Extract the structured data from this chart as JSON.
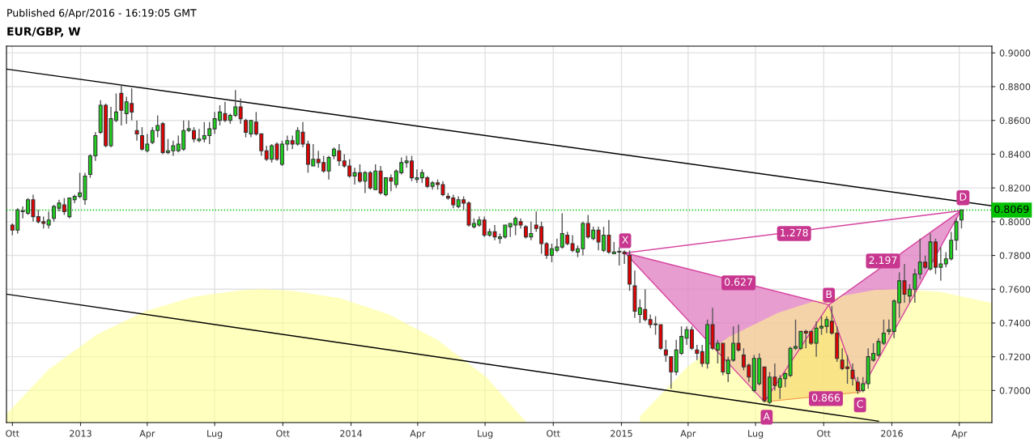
{
  "chart_data": {
    "type": "candlestick",
    "title": "EUR/GBP, W",
    "subtitle": "Published 6/Apr/2016 - 16:19:05 GMT",
    "x": [
      "2012-10-01",
      "2012-10-08",
      "2012-10-15",
      "2012-10-22",
      "2012-10-29",
      "2012-11-05",
      "2012-11-12",
      "2012-11-19",
      "2012-11-26",
      "2012-12-03",
      "2012-12-10",
      "2012-12-17",
      "2012-12-24",
      "2012-12-31",
      "2013-01-07",
      "2013-01-14",
      "2013-01-21",
      "2013-01-28",
      "2013-02-04",
      "2013-02-11",
      "2013-02-18",
      "2013-02-25",
      "2013-03-04",
      "2013-03-11",
      "2013-03-18",
      "2013-03-25",
      "2013-04-01",
      "2013-04-08",
      "2013-04-15",
      "2013-04-22",
      "2013-04-29",
      "2013-05-06",
      "2013-05-13",
      "2013-05-20",
      "2013-05-27",
      "2013-06-03",
      "2013-06-10",
      "2013-06-17",
      "2013-06-24",
      "2013-07-01",
      "2013-07-08",
      "2013-07-15",
      "2013-07-22",
      "2013-07-29",
      "2013-08-05",
      "2013-08-12",
      "2013-08-19",
      "2013-08-26",
      "2013-09-02",
      "2013-09-09",
      "2013-09-16",
      "2013-09-23",
      "2013-09-30",
      "2013-10-07",
      "2013-10-14",
      "2013-10-21",
      "2013-10-28",
      "2013-11-04",
      "2013-11-11",
      "2013-11-18",
      "2013-11-25",
      "2013-12-02",
      "2013-12-09",
      "2013-12-16",
      "2013-12-23",
      "2013-12-30",
      "2014-01-06",
      "2014-01-13",
      "2014-01-20",
      "2014-01-27",
      "2014-02-03",
      "2014-02-10",
      "2014-02-17",
      "2014-02-24",
      "2014-03-03",
      "2014-03-10",
      "2014-03-17",
      "2014-03-24",
      "2014-03-31",
      "2014-04-07",
      "2014-04-14",
      "2014-04-21",
      "2014-04-28",
      "2014-05-05",
      "2014-05-12",
      "2014-05-19",
      "2014-05-26",
      "2014-06-02",
      "2014-06-09",
      "2014-06-16",
      "2014-06-23",
      "2014-06-30",
      "2014-07-07",
      "2014-07-14",
      "2014-07-21",
      "2014-07-28",
      "2014-08-04",
      "2014-08-11",
      "2014-08-18",
      "2014-08-25",
      "2014-09-01",
      "2014-09-08",
      "2014-09-15",
      "2014-09-22",
      "2014-09-29",
      "2014-10-06",
      "2014-10-13",
      "2014-10-20",
      "2014-10-27",
      "2014-11-03",
      "2014-11-10",
      "2014-11-17",
      "2014-11-24",
      "2014-12-01",
      "2014-12-08",
      "2014-12-15",
      "2014-12-22",
      "2014-12-29",
      "2015-01-05",
      "2015-01-12",
      "2015-01-19",
      "2015-01-26",
      "2015-02-02",
      "2015-02-09",
      "2015-02-16",
      "2015-02-23",
      "2015-03-02",
      "2015-03-09",
      "2015-03-16",
      "2015-03-23",
      "2015-03-30",
      "2015-04-06",
      "2015-04-13",
      "2015-04-20",
      "2015-04-27",
      "2015-05-04",
      "2015-05-11",
      "2015-05-18",
      "2015-05-25",
      "2015-06-01",
      "2015-06-08",
      "2015-06-15",
      "2015-06-22",
      "2015-06-29",
      "2015-07-06",
      "2015-07-13",
      "2015-07-20",
      "2015-07-27",
      "2015-08-03",
      "2015-08-10",
      "2015-08-17",
      "2015-08-24",
      "2015-08-31",
      "2015-09-07",
      "2015-09-14",
      "2015-09-21",
      "2015-09-28",
      "2015-10-05",
      "2015-10-12",
      "2015-10-19",
      "2015-10-26",
      "2015-11-02",
      "2015-11-09",
      "2015-11-16",
      "2015-11-23",
      "2015-11-30",
      "2015-12-07",
      "2015-12-14",
      "2015-12-21",
      "2015-12-28",
      "2016-01-04",
      "2016-01-11",
      "2016-01-18",
      "2016-01-25",
      "2016-02-01",
      "2016-02-08",
      "2016-02-15",
      "2016-02-22",
      "2016-02-29",
      "2016-03-07",
      "2016-03-14",
      "2016-03-21",
      "2016-03-28",
      "2016-04-04"
    ],
    "ohlc": [
      [
        0.798,
        0.799,
        0.792,
        0.795
      ],
      [
        0.795,
        0.808,
        0.793,
        0.807
      ],
      [
        0.806,
        0.809,
        0.802,
        0.806
      ],
      [
        0.805,
        0.814,
        0.804,
        0.813
      ],
      [
        0.813,
        0.816,
        0.8,
        0.803
      ],
      [
        0.803,
        0.807,
        0.799,
        0.8
      ],
      [
        0.8,
        0.803,
        0.796,
        0.799
      ],
      [
        0.798,
        0.806,
        0.796,
        0.801
      ],
      [
        0.802,
        0.81,
        0.8,
        0.809
      ],
      [
        0.808,
        0.813,
        0.806,
        0.811
      ],
      [
        0.81,
        0.814,
        0.804,
        0.806
      ],
      [
        0.803,
        0.814,
        0.802,
        0.814
      ],
      [
        0.813,
        0.816,
        0.811,
        0.815
      ],
      [
        0.815,
        0.829,
        0.814,
        0.817
      ],
      [
        0.813,
        0.829,
        0.81,
        0.827
      ],
      [
        0.828,
        0.84,
        0.826,
        0.839
      ],
      [
        0.839,
        0.853,
        0.836,
        0.851
      ],
      [
        0.853,
        0.872,
        0.852,
        0.869
      ],
      [
        0.869,
        0.87,
        0.844,
        0.845
      ],
      [
        0.845,
        0.868,
        0.844,
        0.861
      ],
      [
        0.86,
        0.876,
        0.859,
        0.865
      ],
      [
        0.876,
        0.881,
        0.857,
        0.866
      ],
      [
        0.864,
        0.874,
        0.858,
        0.871
      ],
      [
        0.87,
        0.879,
        0.86,
        0.865
      ],
      [
        0.854,
        0.86,
        0.848,
        0.852
      ],
      [
        0.851,
        0.856,
        0.842,
        0.843
      ],
      [
        0.842,
        0.852,
        0.841,
        0.846
      ],
      [
        0.847,
        0.856,
        0.846,
        0.854
      ],
      [
        0.854,
        0.863,
        0.85,
        0.857
      ],
      [
        0.858,
        0.859,
        0.84,
        0.841
      ],
      [
        0.841,
        0.849,
        0.84,
        0.842
      ],
      [
        0.842,
        0.848,
        0.839,
        0.845
      ],
      [
        0.842,
        0.851,
        0.841,
        0.846
      ],
      [
        0.843,
        0.86,
        0.842,
        0.854
      ],
      [
        0.854,
        0.86,
        0.853,
        0.855
      ],
      [
        0.854,
        0.856,
        0.847,
        0.849
      ],
      [
        0.848,
        0.855,
        0.847,
        0.849
      ],
      [
        0.849,
        0.859,
        0.847,
        0.851
      ],
      [
        0.851,
        0.859,
        0.846,
        0.855
      ],
      [
        0.855,
        0.865,
        0.852,
        0.861
      ],
      [
        0.86,
        0.869,
        0.857,
        0.865
      ],
      [
        0.864,
        0.871,
        0.859,
        0.86
      ],
      [
        0.86,
        0.864,
        0.858,
        0.863
      ],
      [
        0.863,
        0.878,
        0.862,
        0.868
      ],
      [
        0.868,
        0.873,
        0.858,
        0.861
      ],
      [
        0.86,
        0.861,
        0.85,
        0.853
      ],
      [
        0.852,
        0.86,
        0.85,
        0.86
      ],
      [
        0.859,
        0.865,
        0.851,
        0.852
      ],
      [
        0.852,
        0.852,
        0.839,
        0.842
      ],
      [
        0.842,
        0.845,
        0.836,
        0.837
      ],
      [
        0.837,
        0.846,
        0.835,
        0.845
      ],
      [
        0.846,
        0.847,
        0.836,
        0.837
      ],
      [
        0.834,
        0.848,
        0.833,
        0.846
      ],
      [
        0.846,
        0.851,
        0.842,
        0.848
      ],
      [
        0.848,
        0.851,
        0.843,
        0.846
      ],
      [
        0.846,
        0.856,
        0.845,
        0.854
      ],
      [
        0.853,
        0.859,
        0.844,
        0.846
      ],
      [
        0.846,
        0.848,
        0.829,
        0.834
      ],
      [
        0.833,
        0.846,
        0.833,
        0.837
      ],
      [
        0.837,
        0.842,
        0.832,
        0.835
      ],
      [
        0.835,
        0.839,
        0.829,
        0.83
      ],
      [
        0.83,
        0.839,
        0.825,
        0.838
      ],
      [
        0.839,
        0.844,
        0.837,
        0.843
      ],
      [
        0.842,
        0.846,
        0.833,
        0.836
      ],
      [
        0.836,
        0.84,
        0.832,
        0.833
      ],
      [
        0.833,
        0.837,
        0.826,
        0.827
      ],
      [
        0.827,
        0.832,
        0.822,
        0.829
      ],
      [
        0.829,
        0.834,
        0.823,
        0.824
      ],
      [
        0.824,
        0.83,
        0.817,
        0.829
      ],
      [
        0.829,
        0.83,
        0.819,
        0.82
      ],
      [
        0.819,
        0.834,
        0.819,
        0.83
      ],
      [
        0.83,
        0.833,
        0.816,
        0.817
      ],
      [
        0.816,
        0.826,
        0.815,
        0.826
      ],
      [
        0.826,
        0.828,
        0.818,
        0.824
      ],
      [
        0.822,
        0.831,
        0.82,
        0.83
      ],
      [
        0.829,
        0.838,
        0.828,
        0.835
      ],
      [
        0.835,
        0.839,
        0.832,
        0.836
      ],
      [
        0.836,
        0.839,
        0.824,
        0.826
      ],
      [
        0.825,
        0.831,
        0.823,
        0.826
      ],
      [
        0.826,
        0.831,
        0.823,
        0.829
      ],
      [
        0.826,
        0.827,
        0.82,
        0.821
      ],
      [
        0.821,
        0.824,
        0.819,
        0.823
      ],
      [
        0.823,
        0.825,
        0.819,
        0.822
      ],
      [
        0.822,
        0.824,
        0.815,
        0.816
      ],
      [
        0.815,
        0.817,
        0.813,
        0.814
      ],
      [
        0.814,
        0.816,
        0.808,
        0.81
      ],
      [
        0.809,
        0.815,
        0.808,
        0.813
      ],
      [
        0.813,
        0.815,
        0.807,
        0.811
      ],
      [
        0.811,
        0.812,
        0.797,
        0.798
      ],
      [
        0.797,
        0.802,
        0.796,
        0.799
      ],
      [
        0.798,
        0.803,
        0.797,
        0.801
      ],
      [
        0.801,
        0.803,
        0.791,
        0.792
      ],
      [
        0.792,
        0.796,
        0.791,
        0.794
      ],
      [
        0.794,
        0.798,
        0.789,
        0.791
      ],
      [
        0.79,
        0.793,
        0.787,
        0.791
      ],
      [
        0.791,
        0.798,
        0.79,
        0.798
      ],
      [
        0.797,
        0.799,
        0.791,
        0.799
      ],
      [
        0.798,
        0.803,
        0.792,
        0.802
      ],
      [
        0.8,
        0.802,
        0.796,
        0.798
      ],
      [
        0.797,
        0.798,
        0.79,
        0.791
      ],
      [
        0.791,
        0.8,
        0.789,
        0.793
      ],
      [
        0.798,
        0.806,
        0.794,
        0.796
      ],
      [
        0.797,
        0.8,
        0.781,
        0.787
      ],
      [
        0.787,
        0.788,
        0.778,
        0.78
      ],
      [
        0.78,
        0.787,
        0.776,
        0.784
      ],
      [
        0.783,
        0.79,
        0.782,
        0.785
      ],
      [
        0.785,
        0.805,
        0.784,
        0.793
      ],
      [
        0.792,
        0.794,
        0.786,
        0.787
      ],
      [
        0.787,
        0.792,
        0.782,
        0.783
      ],
      [
        0.782,
        0.786,
        0.779,
        0.784
      ],
      [
        0.784,
        0.8,
        0.78,
        0.799
      ],
      [
        0.799,
        0.804,
        0.79,
        0.791
      ],
      [
        0.79,
        0.797,
        0.789,
        0.795
      ],
      [
        0.795,
        0.797,
        0.783,
        0.788
      ],
      [
        0.783,
        0.797,
        0.782,
        0.792
      ],
      [
        0.792,
        0.801,
        0.781,
        0.782
      ],
      [
        0.781,
        0.788,
        0.781,
        0.782
      ],
      [
        0.782,
        0.785,
        0.774,
        0.782
      ],
      [
        0.782,
        0.783,
        0.775,
        0.781
      ],
      [
        0.78,
        0.783,
        0.759,
        0.763
      ],
      [
        0.762,
        0.771,
        0.743,
        0.747
      ],
      [
        0.745,
        0.754,
        0.74,
        0.749
      ],
      [
        0.748,
        0.76,
        0.741,
        0.742
      ],
      [
        0.742,
        0.745,
        0.737,
        0.739
      ],
      [
        0.739,
        0.744,
        0.733,
        0.739
      ],
      [
        0.739,
        0.739,
        0.724,
        0.725
      ],
      [
        0.724,
        0.73,
        0.717,
        0.721
      ],
      [
        0.72,
        0.72,
        0.701,
        0.711
      ],
      [
        0.711,
        0.73,
        0.709,
        0.724
      ],
      [
        0.722,
        0.738,
        0.721,
        0.732
      ],
      [
        0.731,
        0.738,
        0.727,
        0.736
      ],
      [
        0.736,
        0.738,
        0.724,
        0.725
      ],
      [
        0.724,
        0.727,
        0.718,
        0.722
      ],
      [
        0.723,
        0.727,
        0.714,
        0.716
      ],
      [
        0.716,
        0.742,
        0.713,
        0.739
      ],
      [
        0.739,
        0.749,
        0.724,
        0.725
      ],
      [
        0.724,
        0.73,
        0.716,
        0.728
      ],
      [
        0.728,
        0.728,
        0.709,
        0.711
      ],
      [
        0.71,
        0.72,
        0.705,
        0.718
      ],
      [
        0.718,
        0.738,
        0.717,
        0.728
      ],
      [
        0.728,
        0.739,
        0.723,
        0.724
      ],
      [
        0.721,
        0.725,
        0.712,
        0.714
      ],
      [
        0.715,
        0.716,
        0.705,
        0.708
      ],
      [
        0.7,
        0.721,
        0.699,
        0.719
      ],
      [
        0.704,
        0.722,
        0.703,
        0.719
      ],
      [
        0.714,
        0.714,
        0.693,
        0.694
      ],
      [
        0.693,
        0.711,
        0.692,
        0.708
      ],
      [
        0.708,
        0.716,
        0.7,
        0.703
      ],
      [
        0.702,
        0.709,
        0.695,
        0.707
      ],
      [
        0.707,
        0.711,
        0.702,
        0.71
      ],
      [
        0.709,
        0.726,
        0.708,
        0.725
      ],
      [
        0.725,
        0.742,
        0.724,
        0.726
      ],
      [
        0.725,
        0.735,
        0.724,
        0.735
      ],
      [
        0.735,
        0.736,
        0.725,
        0.734
      ],
      [
        0.735,
        0.735,
        0.727,
        0.728
      ],
      [
        0.728,
        0.741,
        0.72,
        0.737
      ],
      [
        0.737,
        0.744,
        0.733,
        0.738
      ],
      [
        0.738,
        0.744,
        0.734,
        0.742
      ],
      [
        0.741,
        0.75,
        0.733,
        0.734
      ],
      [
        0.734,
        0.738,
        0.717,
        0.719
      ],
      [
        0.718,
        0.725,
        0.712,
        0.713
      ],
      [
        0.714,
        0.721,
        0.704,
        0.713
      ],
      [
        0.712,
        0.716,
        0.703,
        0.707
      ],
      [
        0.705,
        0.708,
        0.698,
        0.7
      ],
      [
        0.7,
        0.708,
        0.699,
        0.704
      ],
      [
        0.704,
        0.725,
        0.701,
        0.72
      ],
      [
        0.718,
        0.728,
        0.717,
        0.722
      ],
      [
        0.721,
        0.731,
        0.72,
        0.729
      ],
      [
        0.728,
        0.742,
        0.727,
        0.734
      ],
      [
        0.735,
        0.742,
        0.733,
        0.736
      ],
      [
        0.735,
        0.754,
        0.731,
        0.753
      ],
      [
        0.752,
        0.77,
        0.743,
        0.765
      ],
      [
        0.765,
        0.775,
        0.752,
        0.757
      ],
      [
        0.756,
        0.763,
        0.752,
        0.76
      ],
      [
        0.76,
        0.772,
        0.752,
        0.769
      ],
      [
        0.769,
        0.79,
        0.766,
        0.776
      ],
      [
        0.776,
        0.78,
        0.772,
        0.773
      ],
      [
        0.772,
        0.793,
        0.771,
        0.788
      ],
      [
        0.788,
        0.79,
        0.769,
        0.773
      ],
      [
        0.773,
        0.785,
        0.765,
        0.775
      ],
      [
        0.775,
        0.782,
        0.773,
        0.778
      ],
      [
        0.778,
        0.794,
        0.777,
        0.789
      ],
      [
        0.789,
        0.802,
        0.783,
        0.8
      ],
      [
        0.801,
        0.807,
        0.796,
        0.807
      ]
    ],
    "series": [
      {
        "type": "area",
        "color": "#ffff88",
        "x": [
          "2012-09-23",
          "2012-11-19",
          "2013-01-23",
          "2013-03-29",
          "2013-06-03",
          "2013-08-08",
          "2013-09-04",
          "2013-10-12",
          "2013-12-17",
          "2014-02-21",
          "2014-04-27",
          "2014-07-02",
          "2014-08-26"
        ],
        "values": [
          0.6861,
          0.7125,
          0.7331,
          0.747,
          0.7556,
          0.7595,
          0.76,
          0.7592,
          0.7547,
          0.7451,
          0.7302,
          0.7082,
          0.681
        ]
      },
      {
        "type": "area",
        "color": "#ffff88",
        "x": [
          "2015-01-26",
          "2015-04-01",
          "2015-05-26",
          "2015-07-31",
          "2015-09-20",
          "2015-12-09",
          "2016-01-11",
          "2016-03-06",
          "2016-05-15"
        ],
        "values": [
          0.6847,
          0.7144,
          0.7317,
          0.746,
          0.7532,
          0.7595,
          0.76,
          0.7585,
          0.7518
        ]
      },
      {
        "type": "line",
        "color": "#000000",
        "x": [
          "2012-09-23",
          "2016-05-15"
        ],
        "values": [
          0.8904,
          0.8094
        ]
      },
      {
        "type": "line",
        "color": "#000000",
        "x": [
          "2012-09-23",
          "2015-12-14"
        ],
        "values": [
          0.7571,
          0.6818
        ]
      },
      {
        "type": "line",
        "color": "#d6429f",
        "x": [
          "2015-01-06",
          "2015-07-13",
          "2015-10-08",
          "2015-11-19",
          "2016-04-03"
        ],
        "values": [
          0.7815,
          0.6933,
          0.7508,
          0.699,
          0.8065
        ]
      },
      {
        "type": "line",
        "color": "#d6429f",
        "x": [
          "2015-01-06",
          "2015-10-08"
        ],
        "values": [
          0.7815,
          0.7508
        ]
      },
      {
        "type": "line",
        "color": "#d6429f",
        "x": [
          "2015-01-06",
          "2016-04-03"
        ],
        "values": [
          0.7815,
          0.8065
        ]
      },
      {
        "type": "line",
        "color": "#d6429f",
        "x": [
          "2015-10-08",
          "2016-04-03"
        ],
        "values": [
          0.7508,
          0.8065
        ]
      },
      {
        "type": "line",
        "color": "#f0a050",
        "x": [
          "2015-07-13",
          "2015-11-19"
        ],
        "values": [
          0.6933,
          0.699
        ]
      }
    ],
    "ref_lines": [
      {
        "axis": "y",
        "value": 0.8069,
        "label": "0.8069",
        "color": "#00c000",
        "line_style": "dotted"
      }
    ],
    "annotations": [
      {
        "text": "X",
        "x": "2015-01-06",
        "y": 0.7887
      },
      {
        "text": "A",
        "x": "2015-07-16",
        "y": 0.6842
      },
      {
        "text": "B",
        "x": "2015-10-08",
        "y": 0.7565
      },
      {
        "text": "C",
        "x": "2015-11-19",
        "y": 0.6915
      },
      {
        "text": "D",
        "x": "2016-04-06",
        "y": 0.8142
      },
      {
        "text": "1.278",
        "x": "2015-08-22",
        "y": 0.793
      },
      {
        "text": "0.627",
        "x": "2015-06-08",
        "y": 0.7638
      },
      {
        "text": "2.197",
        "x": "2015-12-20",
        "y": 0.7767
      },
      {
        "text": "0.866",
        "x": "2015-10-04",
        "y": 0.6952
      }
    ],
    "xlim": [
      "2012-09-23",
      "2016-05-15"
    ],
    "xticks": [
      {
        "value": "2012-10-01",
        "label": "Ott"
      },
      {
        "value": "2013-01-01",
        "label": "2013"
      },
      {
        "value": "2013-04-01",
        "label": "Apr"
      },
      {
        "value": "2013-07-01",
        "label": "Lug"
      },
      {
        "value": "2013-10-01",
        "label": "Ott"
      },
      {
        "value": "2014-01-01",
        "label": "2014"
      },
      {
        "value": "2014-04-01",
        "label": "Apr"
      },
      {
        "value": "2014-07-01",
        "label": "Lug"
      },
      {
        "value": "2014-10-01",
        "label": "Ott"
      },
      {
        "value": "2015-01-01",
        "label": "2015"
      },
      {
        "value": "2015-04-01",
        "label": "Apr"
      },
      {
        "value": "2015-07-01",
        "label": "Lug"
      },
      {
        "value": "2015-10-01",
        "label": "Ott"
      },
      {
        "value": "2016-01-01",
        "label": "2016"
      },
      {
        "value": "2016-04-01",
        "label": "Apr"
      }
    ],
    "ylim": [
      0.681,
      0.904
    ],
    "yticks": [
      {
        "value": 0.7,
        "label": "0.7000"
      },
      {
        "value": 0.72,
        "label": "0.7200"
      },
      {
        "value": 0.74,
        "label": "0.7400"
      },
      {
        "value": 0.76,
        "label": "0.7600"
      },
      {
        "value": 0.78,
        "label": "0.7800"
      },
      {
        "value": 0.8,
        "label": "0.8000"
      },
      {
        "value": 0.82,
        "label": "0.8200"
      },
      {
        "value": 0.84,
        "label": "0.8400"
      },
      {
        "value": 0.86,
        "label": "0.8600"
      },
      {
        "value": 0.88,
        "label": "0.8800"
      },
      {
        "value": 0.9,
        "label": "0.9000"
      }
    ],
    "grid": true,
    "legend": false
  }
}
